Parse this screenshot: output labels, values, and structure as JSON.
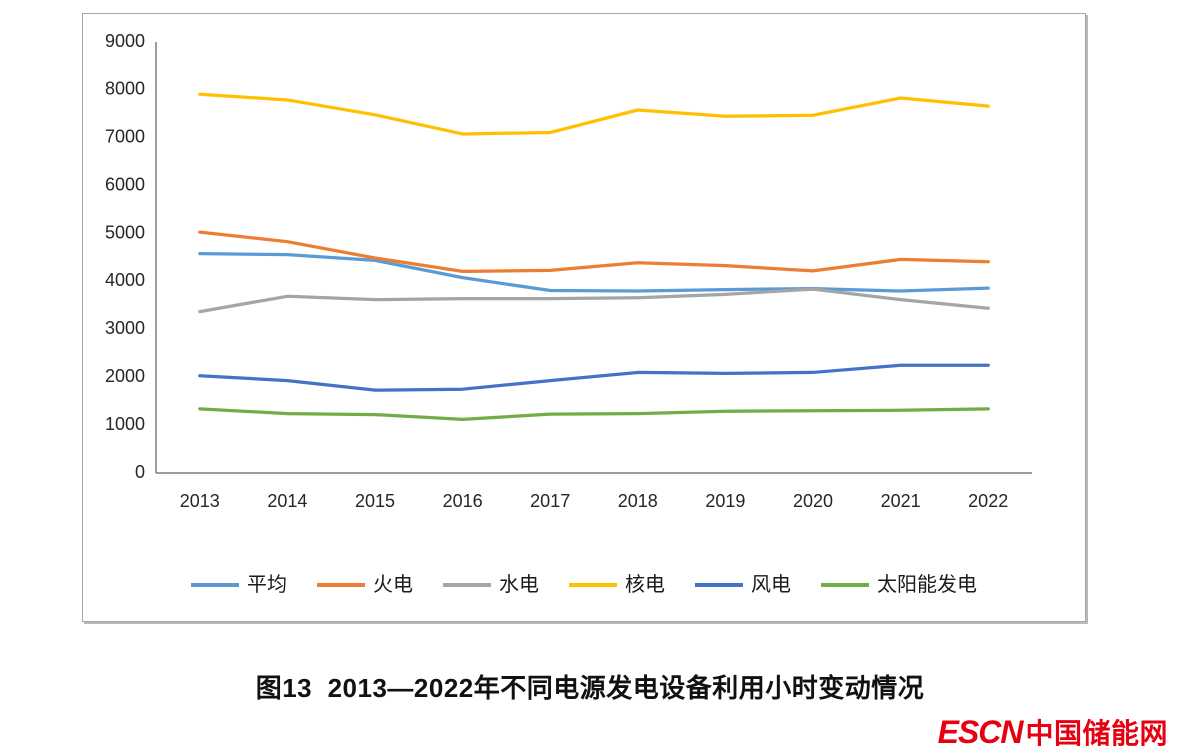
{
  "caption": "图13  2013—2022年不同电源发电设备利用小时变动情况",
  "logo": {
    "latin": "ESCN",
    "cjk": "中国储能网",
    "color": "#e60012"
  },
  "chart_data": {
    "type": "line",
    "categories": [
      "2013",
      "2014",
      "2015",
      "2016",
      "2017",
      "2018",
      "2019",
      "2020",
      "2021",
      "2022"
    ],
    "series": [
      {
        "name": "平均",
        "color": "#5B9BD5",
        "values": [
          4580,
          4560,
          4440,
          4080,
          3810,
          3800,
          3830,
          3850,
          3800,
          3860
        ]
      },
      {
        "name": "火电",
        "color": "#ED7D31",
        "values": [
          5030,
          4830,
          4490,
          4210,
          4230,
          4390,
          4330,
          4220,
          4460,
          4410
        ]
      },
      {
        "name": "水电",
        "color": "#A5A5A5",
        "values": [
          3370,
          3690,
          3620,
          3640,
          3640,
          3660,
          3730,
          3840,
          3620,
          3440
        ]
      },
      {
        "name": "核电",
        "color": "#FFC000",
        "values": [
          7910,
          7790,
          7480,
          7080,
          7110,
          7580,
          7450,
          7470,
          7830,
          7660
        ]
      },
      {
        "name": "风电",
        "color": "#4472C4",
        "values": [
          2030,
          1930,
          1730,
          1750,
          1930,
          2100,
          2080,
          2100,
          2250,
          2250
        ]
      },
      {
        "name": "太阳能发电",
        "color": "#70AD47",
        "values": [
          1340,
          1240,
          1220,
          1120,
          1230,
          1240,
          1290,
          1300,
          1310,
          1340
        ]
      }
    ],
    "ylim": [
      0,
      9000
    ],
    "yticks": [
      "0",
      "1000",
      "2000",
      "3000",
      "4000",
      "5000",
      "6000",
      "7000",
      "8000",
      "9000"
    ],
    "xlabel": "",
    "ylabel": "",
    "grid": false,
    "legend_position": "bottom",
    "axis_color": "#7f7f7f",
    "tick_label_color": "#262626"
  }
}
